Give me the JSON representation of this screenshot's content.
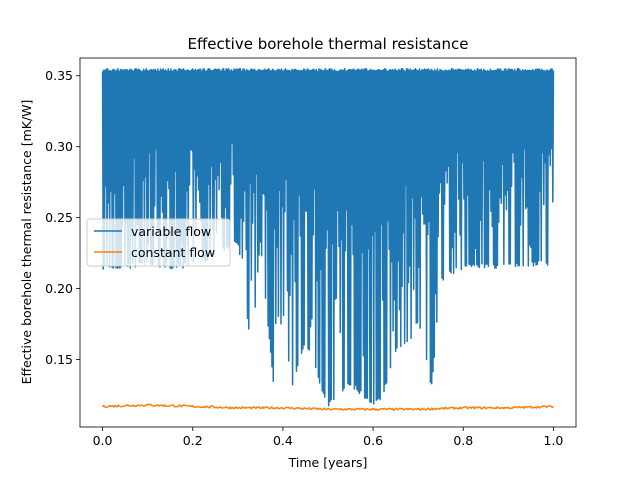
{
  "chart_data": {
    "type": "line",
    "title": "Effective borehole thermal resistance",
    "xlabel": "Time [years]",
    "ylabel": "Effective borehole thermal resistance [mK/W]",
    "xlim": [
      -0.05,
      1.05
    ],
    "ylim": [
      0.1025,
      0.3625
    ],
    "xticks": [
      0.0,
      0.2,
      0.4,
      0.6,
      0.8,
      1.0
    ],
    "xtick_labels": [
      "0.0",
      "0.2",
      "0.4",
      "0.6",
      "0.8",
      "1.0"
    ],
    "yticks": [
      0.15,
      0.2,
      0.25,
      0.3,
      0.35
    ],
    "ytick_labels": [
      "0.15",
      "0.20",
      "0.25",
      "0.30",
      "0.35"
    ],
    "grid": false,
    "legend_placement": "center-left",
    "series": [
      {
        "name": "variable flow",
        "color": "#1f77b4",
        "x": [
          0.0,
          1.0
        ],
        "y_max": 0.355,
        "y_min_envelope": {
          "x": [
            0.0,
            0.05,
            0.1,
            0.15,
            0.2,
            0.25,
            0.3,
            0.33,
            0.35,
            0.38,
            0.4,
            0.42,
            0.45,
            0.48,
            0.5,
            0.52,
            0.55,
            0.58,
            0.6,
            0.62,
            0.65,
            0.68,
            0.7,
            0.73,
            0.75,
            0.8,
            0.85,
            0.9,
            0.95,
            1.0
          ],
          "y": [
            0.213,
            0.214,
            0.215,
            0.214,
            0.215,
            0.222,
            0.232,
            0.153,
            0.232,
            0.129,
            0.185,
            0.129,
            0.163,
            0.134,
            0.117,
            0.123,
            0.132,
            0.122,
            0.117,
            0.123,
            0.154,
            0.162,
            0.175,
            0.129,
            0.205,
            0.214,
            0.214,
            0.214,
            0.215,
            0.217
          ]
        }
      },
      {
        "name": "constant flow",
        "color": "#ff7f0e",
        "x": [
          0.0,
          0.1,
          0.2,
          0.3,
          0.4,
          0.5,
          0.6,
          0.7,
          0.8,
          0.9,
          1.0
        ],
        "y": [
          0.117,
          0.118,
          0.117,
          0.116,
          0.116,
          0.115,
          0.115,
          0.115,
          0.116,
          0.116,
          0.117
        ]
      }
    ]
  }
}
